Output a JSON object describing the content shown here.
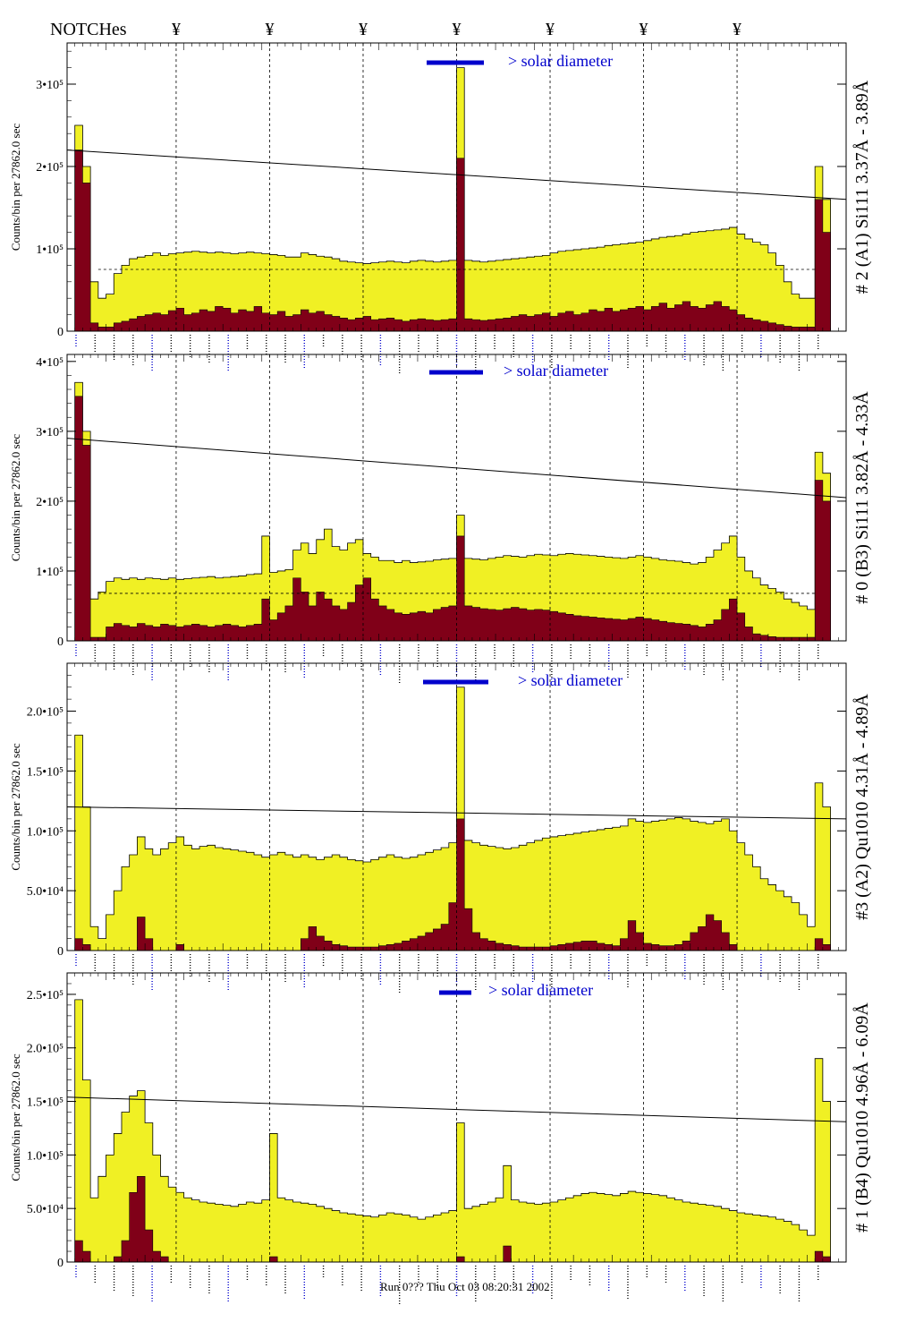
{
  "header": {
    "notches_label": "NOTCHes",
    "notch_symbol": "¥"
  },
  "footer": {
    "timestamp": "Run 0??? Thu Oct 03 08:20:31 2002"
  },
  "colors": {
    "counts_fill": "#f0f024",
    "subset_fill": "#800018",
    "legend_blue": "#0000cc",
    "line_label_blue": "#0000cc",
    "line_label_black": "#000000",
    "axis": "#000000"
  },
  "notch_x_fractions_note": "notch marker positions in bin units (0..100 across plot)",
  "chart_data": [
    {
      "type": "area",
      "title": "# 2 (A1) Si111  3.37Å - 3.89Å",
      "ylabel": "Counts/bin per  27862.0 sec",
      "legend_text": "> solar diameter",
      "y_ticks": [
        0,
        100000,
        200000,
        300000
      ],
      "y_tick_labels": [
        "0",
        "1•10⁵",
        "2•10⁵",
        "3•10⁵"
      ],
      "ylim": [
        0,
        350000
      ],
      "notches": [
        14,
        26,
        38,
        50,
        62,
        74,
        86
      ],
      "sloped_line": [
        220000,
        160000
      ],
      "dashed_level": 75000,
      "yellow_series": [
        0,
        250000,
        200000,
        60000,
        40000,
        45000,
        70000,
        80000,
        88000,
        90000,
        92000,
        95000,
        92000,
        94000,
        95000,
        96000,
        97000,
        96000,
        95000,
        96000,
        95000,
        94000,
        95000,
        96000,
        95000,
        94000,
        93000,
        92000,
        90000,
        90000,
        95000,
        93000,
        91000,
        90000,
        88000,
        85000,
        84000,
        83000,
        82000,
        83000,
        84000,
        85000,
        84000,
        83000,
        85000,
        86000,
        85000,
        84000,
        85000,
        86000,
        320000,
        86000,
        85000,
        84000,
        85000,
        86000,
        87000,
        88000,
        89000,
        90000,
        91000,
        92000,
        95000,
        97000,
        98000,
        99000,
        100000,
        101000,
        102000,
        104000,
        105000,
        106000,
        107000,
        108000,
        110000,
        112000,
        114000,
        115000,
        116000,
        118000,
        120000,
        121000,
        122000,
        123000,
        124000,
        126000,
        118000,
        112000,
        108000,
        105000,
        95000,
        80000,
        60000,
        45000,
        40000,
        40000,
        200000,
        160000,
        0,
        0
      ],
      "red_series": [
        0,
        220000,
        180000,
        10000,
        5000,
        5000,
        10000,
        12000,
        15000,
        18000,
        20000,
        22000,
        20000,
        25000,
        28000,
        20000,
        22000,
        26000,
        24000,
        30000,
        28000,
        22000,
        26000,
        24000,
        30000,
        22000,
        20000,
        24000,
        18000,
        20000,
        26000,
        22000,
        24000,
        20000,
        18000,
        16000,
        14000,
        16000,
        18000,
        14000,
        15000,
        16000,
        14000,
        12000,
        14000,
        15000,
        14000,
        13000,
        14000,
        15000,
        210000,
        15000,
        14000,
        13000,
        14000,
        15000,
        16000,
        18000,
        20000,
        18000,
        20000,
        22000,
        18000,
        22000,
        24000,
        20000,
        22000,
        26000,
        24000,
        28000,
        24000,
        26000,
        28000,
        30000,
        26000,
        30000,
        34000,
        28000,
        32000,
        36000,
        30000,
        28000,
        32000,
        36000,
        30000,
        26000,
        20000,
        16000,
        14000,
        12000,
        10000,
        8000,
        6000,
        5000,
        5000,
        5000,
        160000,
        120000,
        0,
        0
      ]
    },
    {
      "type": "area",
      "title": "# 0 (B3) Si111  3.82Å - 4.33Å",
      "ylabel": "Counts/bin per  27862.0 sec",
      "legend_text": "> solar diameter",
      "y_ticks": [
        0,
        100000,
        200000,
        300000,
        400000
      ],
      "y_tick_labels": [
        "0",
        "1•10⁵",
        "2•10⁵",
        "3•10⁵",
        "4•10⁵"
      ],
      "ylim": [
        0,
        410000
      ],
      "notches": [
        14,
        26,
        38,
        50,
        62,
        74,
        86
      ],
      "sloped_line": [
        290000,
        205000
      ],
      "dashed_level": 68000,
      "yellow_series": [
        0,
        370000,
        300000,
        60000,
        70000,
        85000,
        90000,
        88000,
        90000,
        88000,
        90000,
        89000,
        88000,
        90000,
        88000,
        89000,
        90000,
        91000,
        92000,
        90000,
        91000,
        92000,
        93000,
        95000,
        96000,
        150000,
        98000,
        100000,
        102000,
        130000,
        140000,
        125000,
        145000,
        160000,
        135000,
        130000,
        140000,
        145000,
        125000,
        120000,
        115000,
        115000,
        112000,
        115000,
        112000,
        113000,
        114000,
        116000,
        117000,
        118000,
        180000,
        118000,
        117000,
        116000,
        118000,
        120000,
        122000,
        121000,
        120000,
        122000,
        124000,
        123000,
        122000,
        124000,
        125000,
        124000,
        123000,
        122000,
        121000,
        120000,
        119000,
        118000,
        120000,
        122000,
        120000,
        118000,
        116000,
        115000,
        114000,
        112000,
        110000,
        112000,
        120000,
        130000,
        140000,
        150000,
        120000,
        100000,
        90000,
        80000,
        75000,
        70000,
        60000,
        55000,
        50000,
        45000,
        270000,
        240000,
        0,
        0
      ],
      "red_series": [
        0,
        350000,
        280000,
        5000,
        5000,
        20000,
        25000,
        22000,
        20000,
        25000,
        22000,
        20000,
        24000,
        22000,
        20000,
        22000,
        24000,
        22000,
        20000,
        22000,
        24000,
        22000,
        20000,
        22000,
        24000,
        60000,
        30000,
        40000,
        50000,
        90000,
        70000,
        50000,
        70000,
        60000,
        50000,
        45000,
        55000,
        80000,
        90000,
        60000,
        50000,
        45000,
        40000,
        38000,
        40000,
        42000,
        40000,
        45000,
        48000,
        50000,
        150000,
        50000,
        48000,
        46000,
        45000,
        44000,
        46000,
        48000,
        46000,
        44000,
        45000,
        44000,
        42000,
        40000,
        38000,
        36000,
        35000,
        34000,
        33000,
        32000,
        31000,
        30000,
        32000,
        34000,
        32000,
        30000,
        28000,
        26000,
        25000,
        24000,
        22000,
        20000,
        24000,
        30000,
        45000,
        60000,
        40000,
        20000,
        10000,
        8000,
        6000,
        5000,
        5000,
        5000,
        5000,
        5000,
        230000,
        200000,
        0,
        0
      ]
    },
    {
      "type": "area",
      "title": "#3 (A2) Qu1010  4.31Å - 4.89Å",
      "ylabel": "Counts/bin per  27862.0 sec",
      "legend_text": "> solar diameter",
      "y_ticks": [
        0,
        50000,
        100000,
        150000,
        200000
      ],
      "y_tick_labels": [
        "0",
        "5.0•10⁴",
        "1.0•10⁵",
        "1.5•10⁵",
        "2.0•10⁵"
      ],
      "ylim": [
        0,
        240000
      ],
      "notches": [
        14,
        26,
        38,
        50,
        62,
        74,
        86
      ],
      "sloped_line": [
        120000,
        110000
      ],
      "dashed_level": 0,
      "yellow_series": [
        0,
        180000,
        120000,
        20000,
        10000,
        30000,
        50000,
        70000,
        80000,
        95000,
        85000,
        80000,
        85000,
        90000,
        95000,
        88000,
        85000,
        87000,
        88000,
        86000,
        85000,
        84000,
        83000,
        82000,
        80000,
        78000,
        80000,
        82000,
        80000,
        78000,
        80000,
        78000,
        76000,
        78000,
        80000,
        78000,
        76000,
        75000,
        74000,
        76000,
        78000,
        80000,
        78000,
        77000,
        78000,
        80000,
        82000,
        84000,
        86000,
        90000,
        220000,
        92000,
        90000,
        88000,
        87000,
        86000,
        85000,
        86000,
        88000,
        90000,
        92000,
        94000,
        95000,
        96000,
        97000,
        98000,
        99000,
        100000,
        101000,
        102000,
        103000,
        104000,
        110000,
        108000,
        107000,
        108000,
        109000,
        110000,
        111000,
        110000,
        108000,
        107000,
        106000,
        108000,
        110000,
        100000,
        90000,
        80000,
        70000,
        60000,
        55000,
        50000,
        45000,
        40000,
        30000,
        20000,
        140000,
        120000,
        0,
        0
      ],
      "red_series": [
        0,
        10000,
        5000,
        0,
        0,
        0,
        0,
        0,
        0,
        28000,
        10000,
        0,
        0,
        0,
        5000,
        0,
        0,
        0,
        0,
        0,
        0,
        0,
        0,
        0,
        0,
        0,
        0,
        0,
        0,
        0,
        10000,
        20000,
        12000,
        8000,
        5000,
        4000,
        3000,
        3000,
        3000,
        3000,
        4000,
        5000,
        6000,
        8000,
        10000,
        12000,
        15000,
        18000,
        22000,
        40000,
        110000,
        35000,
        15000,
        10000,
        8000,
        6000,
        5000,
        4000,
        3000,
        3000,
        3000,
        3000,
        4000,
        5000,
        6000,
        7000,
        8000,
        8000,
        6000,
        5000,
        4000,
        10000,
        25000,
        15000,
        6000,
        5000,
        4000,
        4000,
        5000,
        8000,
        15000,
        20000,
        30000,
        25000,
        15000,
        5000,
        0,
        0,
        0,
        0,
        0,
        0,
        0,
        0,
        0,
        0,
        10000,
        5000,
        0,
        0
      ]
    },
    {
      "type": "area",
      "title": "# 1 (B4) Qu1010 4.96Å - 6.09Å",
      "ylabel": "Counts/bin per  27862.0 sec",
      "legend_text": "> solar diameter",
      "y_ticks": [
        0,
        50000,
        100000,
        150000,
        200000,
        250000
      ],
      "y_tick_labels": [
        "0",
        "5.0•10⁴",
        "1.0•10⁵",
        "1.5•10⁵",
        "2.0•10⁵",
        "2.5•10⁵"
      ],
      "ylim": [
        0,
        270000
      ],
      "notches": [
        14,
        26,
        38,
        50,
        62,
        74,
        86
      ],
      "sloped_line": [
        154000,
        131000
      ],
      "dashed_level": 0,
      "yellow_series": [
        0,
        245000,
        170000,
        60000,
        80000,
        100000,
        120000,
        140000,
        155000,
        160000,
        130000,
        100000,
        80000,
        70000,
        65000,
        60000,
        58000,
        56000,
        55000,
        54000,
        53000,
        52000,
        54000,
        56000,
        55000,
        58000,
        120000,
        60000,
        58000,
        56000,
        55000,
        54000,
        52000,
        50000,
        48000,
        46000,
        45000,
        44000,
        43000,
        42000,
        44000,
        46000,
        45000,
        44000,
        42000,
        40000,
        42000,
        44000,
        46000,
        48000,
        130000,
        50000,
        52000,
        54000,
        56000,
        60000,
        90000,
        58000,
        56000,
        55000,
        54000,
        55000,
        56000,
        58000,
        60000,
        62000,
        64000,
        65000,
        64000,
        63000,
        62000,
        64000,
        66000,
        65000,
        64000,
        63000,
        62000,
        60000,
        58000,
        56000,
        55000,
        54000,
        53000,
        52000,
        50000,
        48000,
        46000,
        45000,
        44000,
        43000,
        42000,
        40000,
        38000,
        35000,
        30000,
        25000,
        190000,
        150000,
        0,
        0
      ],
      "red_series": [
        0,
        20000,
        10000,
        0,
        0,
        0,
        5000,
        20000,
        65000,
        80000,
        30000,
        10000,
        5000,
        0,
        0,
        0,
        0,
        0,
        0,
        0,
        0,
        0,
        0,
        0,
        0,
        0,
        5000,
        0,
        0,
        0,
        0,
        0,
        0,
        0,
        0,
        0,
        0,
        0,
        0,
        0,
        0,
        0,
        0,
        0,
        0,
        0,
        0,
        0,
        0,
        0,
        5000,
        0,
        0,
        0,
        0,
        0,
        15000,
        0,
        0,
        0,
        0,
        0,
        0,
        0,
        0,
        0,
        0,
        0,
        0,
        0,
        0,
        0,
        0,
        0,
        0,
        0,
        0,
        0,
        0,
        0,
        0,
        0,
        0,
        0,
        0,
        0,
        0,
        0,
        0,
        0,
        0,
        0,
        0,
        0,
        0,
        0,
        10000,
        5000,
        0,
        0
      ]
    }
  ]
}
